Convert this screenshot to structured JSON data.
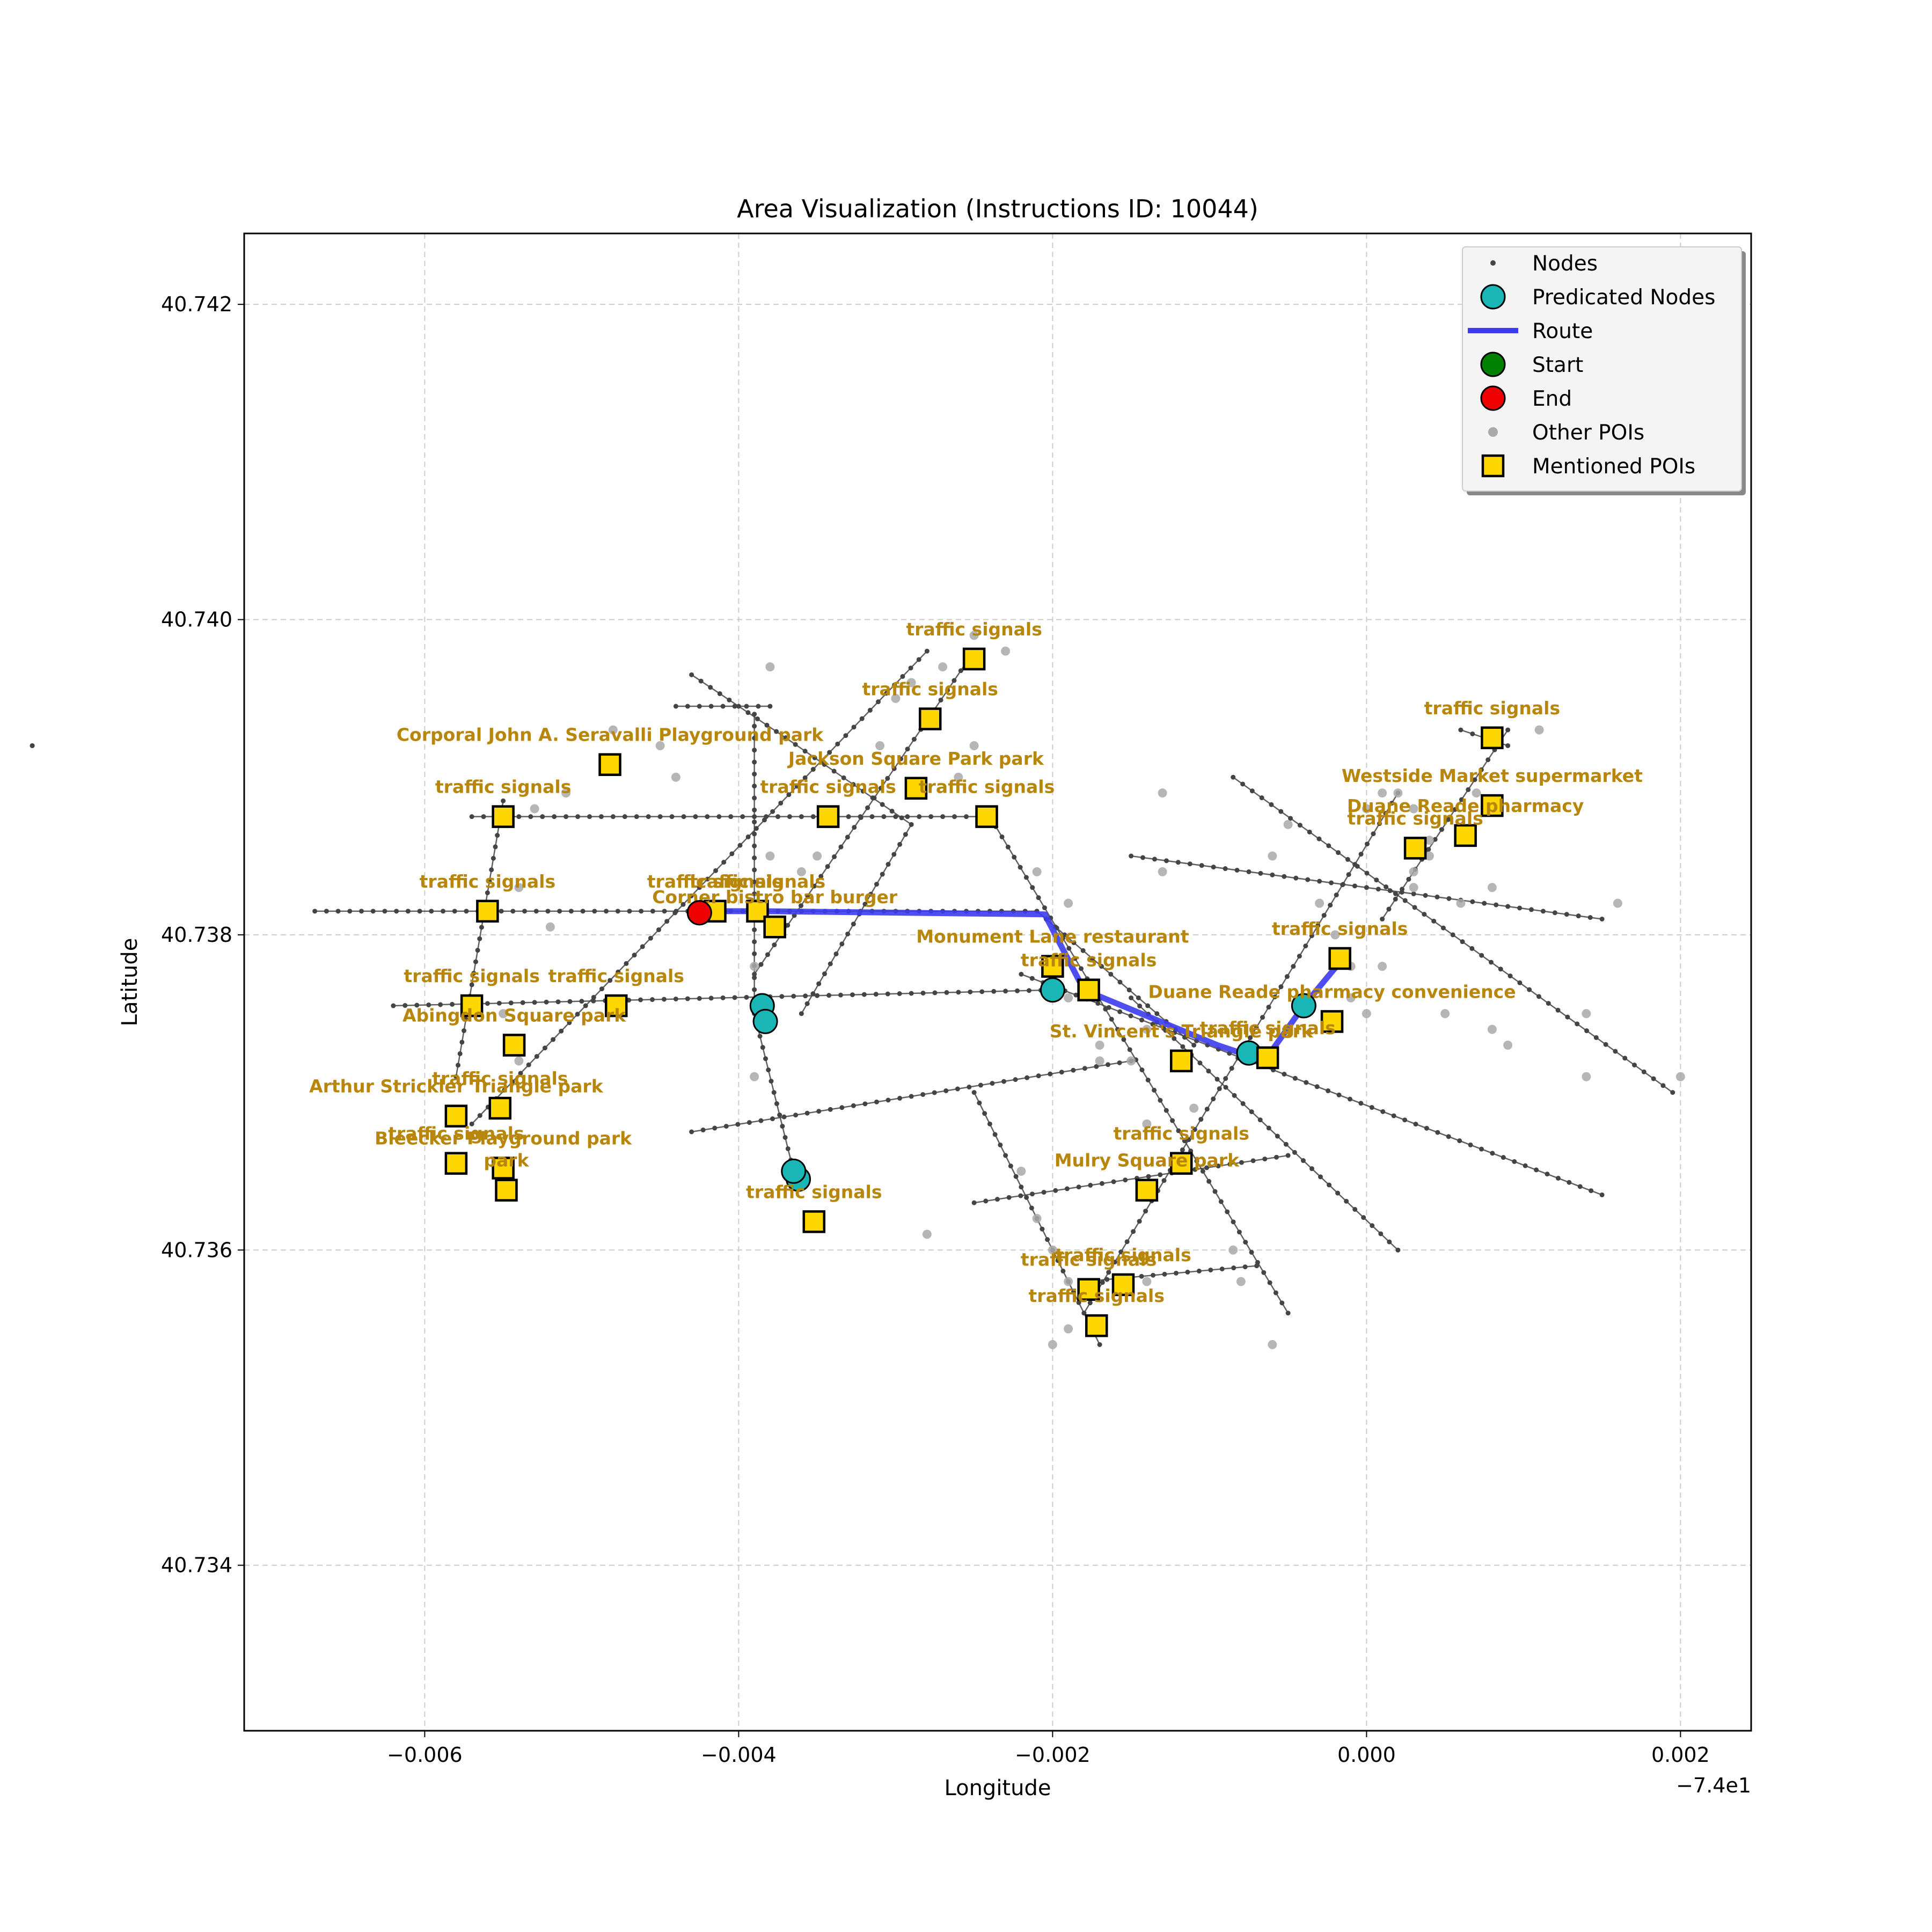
{
  "chart_data": {
    "type": "scatter",
    "title": "Area Visualization (Instructions ID: 10044)",
    "xlabel": "Longitude",
    "ylabel": "Latitude",
    "x_offset_label": "−7.4e1",
    "xlim": [
      -0.00715,
      0.00245
    ],
    "ylim": [
      40.73295,
      40.74245
    ],
    "x_ticks": [
      -0.006,
      -0.004,
      -0.002,
      0.0,
      0.002
    ],
    "x_tick_labels": [
      "−0.006",
      "−0.004",
      "−0.002",
      "0.000",
      "0.002"
    ],
    "y_ticks": [
      40.734,
      40.736,
      40.738,
      40.74,
      40.742
    ],
    "y_tick_labels": [
      "40.734",
      "40.736",
      "40.738",
      "40.740",
      "40.742"
    ],
    "grid": true,
    "legend_position": "top-right",
    "legend": [
      {
        "key": "nodes",
        "label": "Nodes"
      },
      {
        "key": "predicated",
        "label": "Predicated Nodes"
      },
      {
        "key": "route",
        "label": "Route"
      },
      {
        "key": "start",
        "label": "Start"
      },
      {
        "key": "end",
        "label": "End"
      },
      {
        "key": "other",
        "label": "Other POIs"
      },
      {
        "key": "mentioned",
        "label": "Mentioned POIs"
      }
    ],
    "colors": {
      "node": "#444444",
      "predicated": "#1ab5b5",
      "route": "#3c3cf0",
      "start": "#008000",
      "end": "#ee0000",
      "other": "#a9a9a9",
      "mentioned": "#ffd700",
      "label": "#b8860b",
      "grid": "#cccccc"
    },
    "streets": [
      [
        [
          -0.0067,
          40.73815
        ],
        [
          -0.00425,
          40.73815
        ]
      ],
      [
        [
          -0.0057,
          40.73875
        ],
        [
          -0.0024,
          40.73875
        ]
      ],
      [
        [
          -0.0062,
          40.73755
        ],
        [
          -0.002,
          40.73765
        ]
      ],
      [
        [
          -0.0055,
          40.73885
        ],
        [
          -0.0058,
          40.7371
        ]
      ],
      [
        [
          -0.0043,
          40.73965
        ],
        [
          -0.0037,
          40.73925
        ]
      ],
      [
        [
          -0.0037,
          40.73925
        ],
        [
          -0.0029,
          40.7387
        ]
      ],
      [
        [
          -0.0044,
          40.73945
        ],
        [
          -0.0038,
          40.73945
        ]
      ],
      [
        [
          -0.0039,
          40.7394
        ],
        [
          -0.0039,
          40.7375
        ]
      ],
      [
        [
          -0.0039,
          40.7375
        ],
        [
          -0.00365,
          40.7365
        ]
      ],
      [
        [
          -0.0057,
          40.7368
        ],
        [
          -0.0028,
          40.7398
        ]
      ],
      [
        [
          -0.0039,
          40.73775
        ],
        [
          -0.0025,
          40.7398
        ]
      ],
      [
        [
          -0.0036,
          40.7375
        ],
        [
          -0.0029,
          40.7387
        ]
      ],
      [
        [
          -0.0042,
          40.73815
        ],
        [
          -0.0021,
          40.73815
        ]
      ],
      [
        [
          -0.0021,
          40.73815
        ],
        [
          -0.0011,
          40.7373
        ]
      ],
      [
        [
          -0.0024,
          40.73875
        ],
        [
          -0.0005,
          40.7356
        ]
      ],
      [
        [
          -0.0085,
          40.7392
        ],
        [
          -0.0085,
          40.7392
        ]
      ],
      [
        [
          -0.00085,
          40.739
        ],
        [
          0.00195,
          40.737
        ]
      ],
      [
        [
          -0.0022,
          40.73775
        ],
        [
          0.0015,
          40.73635
        ]
      ],
      [
        [
          -0.0043,
          40.73675
        ],
        [
          -0.0015,
          40.7372
        ]
      ],
      [
        [
          -0.0025,
          40.7363
        ],
        [
          -0.0005,
          40.7366
        ]
      ],
      [
        [
          -0.0025,
          40.737
        ],
        [
          -0.0017,
          40.7354
        ]
      ],
      [
        [
          -0.0018,
          40.7358
        ],
        [
          -0.0007,
          40.7359
        ]
      ],
      [
        [
          -0.0015,
          40.7376
        ],
        [
          0.0002,
          40.736
        ]
      ],
      [
        [
          -0.0018,
          40.7356
        ],
        [
          0.0002,
          40.7389
        ]
      ],
      [
        [
          0.0001,
          40.7381
        ],
        [
          0.0009,
          40.7393
        ]
      ],
      [
        [
          0.0006,
          40.7393
        ],
        [
          0.0009,
          40.7392
        ]
      ],
      [
        [
          -0.0015,
          40.7385
        ],
        [
          0.0015,
          40.7381
        ]
      ]
    ],
    "route": [
      [
        -0.00425,
        40.73815
      ],
      [
        -0.00385,
        40.73815
      ],
      [
        -0.00205,
        40.73813
      ],
      [
        -0.0018,
        40.73765
      ],
      [
        -0.00095,
        40.7373
      ],
      [
        -0.00065,
        40.7372
      ],
      [
        -0.0004,
        40.73755
      ],
      [
        -0.00015,
        40.73785
      ]
    ],
    "start": [
      -0.00425,
      40.73814
    ],
    "end": [
      -0.00425,
      40.73814
    ],
    "predicated_nodes": [
      [
        -0.00385,
        40.73755
      ],
      [
        -0.00383,
        40.73745
      ],
      [
        -0.00362,
        40.73645
      ],
      [
        -0.00365,
        40.7365
      ],
      [
        -0.002,
        40.73765
      ],
      [
        -0.00075,
        40.73725
      ],
      [
        -0.0004,
        40.73755
      ]
    ],
    "other_pois": [
      [
        -0.0053,
        40.7388
      ],
      [
        -0.0051,
        40.7389
      ],
      [
        -0.0048,
        40.7393
      ],
      [
        -0.0045,
        40.7392
      ],
      [
        -0.0044,
        40.739
      ],
      [
        -0.0038,
        40.7397
      ],
      [
        -0.0038,
        40.7385
      ],
      [
        -0.0039,
        40.7382
      ],
      [
        -0.0036,
        40.7384
      ],
      [
        -0.0035,
        40.7385
      ],
      [
        -0.0031,
        40.7392
      ],
      [
        -0.003,
        40.7395
      ],
      [
        -0.0029,
        40.7396
      ],
      [
        -0.0027,
        40.7397
      ],
      [
        -0.0025,
        40.7399
      ],
      [
        -0.0023,
        40.7398
      ],
      [
        -0.0025,
        40.7392
      ],
      [
        -0.0026,
        40.739
      ],
      [
        -0.0021,
        40.7384
      ],
      [
        -0.0019,
        40.7382
      ],
      [
        -0.0013,
        40.7389
      ],
      [
        -0.0013,
        40.7384
      ],
      [
        -0.0019,
        40.7376
      ],
      [
        -0.0017,
        40.7373
      ],
      [
        -0.0017,
        40.7372
      ],
      [
        -0.0014,
        40.7374
      ],
      [
        -0.0015,
        40.7372
      ],
      [
        -0.0014,
        40.7368
      ],
      [
        -0.0011,
        40.7369
      ],
      [
        -0.0022,
        40.7365
      ],
      [
        -0.0021,
        40.7362
      ],
      [
        -0.002,
        40.736
      ],
      [
        -0.0019,
        40.7358
      ],
      [
        -0.0019,
        40.7355
      ],
      [
        -0.002,
        40.7354
      ],
      [
        -0.0014,
        40.7358
      ],
      [
        -0.00085,
        40.736
      ],
      [
        -0.0008,
        40.7358
      ],
      [
        -0.0006,
        40.7354
      ],
      [
        -0.0039,
        40.7371
      ],
      [
        -0.0039,
        40.7378
      ],
      [
        -0.0055,
        40.7375
      ],
      [
        -0.0054,
        40.7372
      ],
      [
        -0.0052,
        40.73805
      ],
      [
        -0.0054,
        40.7383
      ],
      [
        -0.0028,
        40.7361
      ],
      [
        -0.0005,
        40.7387
      ],
      [
        -0.0003,
        40.7382
      ],
      [
        -0.0002,
        40.738
      ],
      [
        -0.0002,
        40.7378
      ],
      [
        -0.0001,
        40.7376
      ],
      [
        0.0,
        40.7375
      ],
      [
        0.0001,
        40.7378
      ],
      [
        0.0003,
        40.7383
      ],
      [
        0.0004,
        40.7385
      ],
      [
        0.0004,
        40.7386
      ],
      [
        0.0003,
        40.7388
      ],
      [
        0.0002,
        40.7389
      ],
      [
        0.0001,
        40.7389
      ],
      [
        0.0,
        40.7388
      ],
      [
        0.0006,
        40.7382
      ],
      [
        0.0005,
        40.7375
      ],
      [
        0.0008,
        40.7374
      ],
      [
        0.0009,
        40.7373
      ],
      [
        0.0011,
        40.7393
      ],
      [
        0.0008,
        40.7383
      ],
      [
        0.0014,
        40.7375
      ],
      [
        0.0016,
        40.7382
      ],
      [
        0.0014,
        40.7371
      ],
      [
        0.002,
        40.7371
      ],
      [
        0.0006,
        40.7386
      ],
      [
        0.0007,
        40.7389
      ],
      [
        -0.0006,
        40.7385
      ],
      [
        -0.0001,
        40.7378
      ],
      [
        0.0003,
        40.7384
      ]
    ],
    "mentioned_pois": [
      {
        "x": -0.0025,
        "y": 40.73975,
        "label": "traffic signals"
      },
      {
        "x": -0.00278,
        "y": 40.73937,
        "label": "traffic signals"
      },
      {
        "x": -0.00482,
        "y": 40.73908,
        "label": "Corporal John A. Seravalli Playground   park"
      },
      {
        "x": -0.00287,
        "y": 40.73893,
        "label": "Jackson Square Park   park"
      },
      {
        "x": -0.00343,
        "y": 40.73875,
        "label": "traffic signals"
      },
      {
        "x": -0.00242,
        "y": 40.73875,
        "label": "traffic signals"
      },
      {
        "x": -0.0055,
        "y": 40.73875,
        "label": "traffic signals"
      },
      {
        "x": -0.0056,
        "y": 40.73815,
        "label": "traffic signals"
      },
      {
        "x": -0.00415,
        "y": 40.73815,
        "label": "traffic signals"
      },
      {
        "x": -0.00388,
        "y": 40.73815,
        "label": "traffic signals"
      },
      {
        "x": -0.00377,
        "y": 40.73805,
        "label": "Corner bistro bar burger"
      },
      {
        "x": -0.0057,
        "y": 40.73755,
        "label": "traffic signals"
      },
      {
        "x": -0.00478,
        "y": 40.73755,
        "label": "traffic signals"
      },
      {
        "x": -0.00543,
        "y": 40.7373,
        "label": "Abingdon Square   park"
      },
      {
        "x": -0.00552,
        "y": 40.7369,
        "label": "traffic signals"
      },
      {
        "x": -0.0058,
        "y": 40.73685,
        "label": "Arthur Strickler Triangle   park"
      },
      {
        "x": -0.0058,
        "y": 40.73655,
        "label": "traffic signals"
      },
      {
        "x": -0.0055,
        "y": 40.73652,
        "label": "Bleecker Playground   park"
      },
      {
        "x": -0.00548,
        "y": 40.73638,
        "label": "park"
      },
      {
        "x": -0.00352,
        "y": 40.73618,
        "label": "traffic signals"
      },
      {
        "x": -0.002,
        "y": 40.7378,
        "label": "Monument Lane restaurant"
      },
      {
        "x": -0.00177,
        "y": 40.73765,
        "label": "traffic signals"
      },
      {
        "x": -0.00118,
        "y": 40.7372,
        "label": "St. Vincent's Triangle   park"
      },
      {
        "x": -0.00063,
        "y": 40.73722,
        "label": "traffic signals"
      },
      {
        "x": -0.00022,
        "y": 40.73745,
        "label": "Duane Reade pharmacy   convenience"
      },
      {
        "x": -0.00017,
        "y": 40.73785,
        "label": "traffic signals"
      },
      {
        "x": -0.00118,
        "y": 40.73655,
        "label": "traffic signals"
      },
      {
        "x": -0.0014,
        "y": 40.73638,
        "label": "Mulry Square   park"
      },
      {
        "x": -0.00155,
        "y": 40.73578,
        "label": "traffic signals"
      },
      {
        "x": -0.00177,
        "y": 40.73575,
        "label": "traffic signals"
      },
      {
        "x": -0.00172,
        "y": 40.73552,
        "label": "traffic signals"
      },
      {
        "x": 0.00031,
        "y": 40.73855,
        "label": "traffic signals"
      },
      {
        "x": 0.00063,
        "y": 40.73863,
        "label": "Duane Reade pharmacy"
      },
      {
        "x": 0.0008,
        "y": 40.73882,
        "label": "Westside Market   supermarket"
      },
      {
        "x": 0.0008,
        "y": 40.73925,
        "label": "traffic signals"
      }
    ]
  }
}
